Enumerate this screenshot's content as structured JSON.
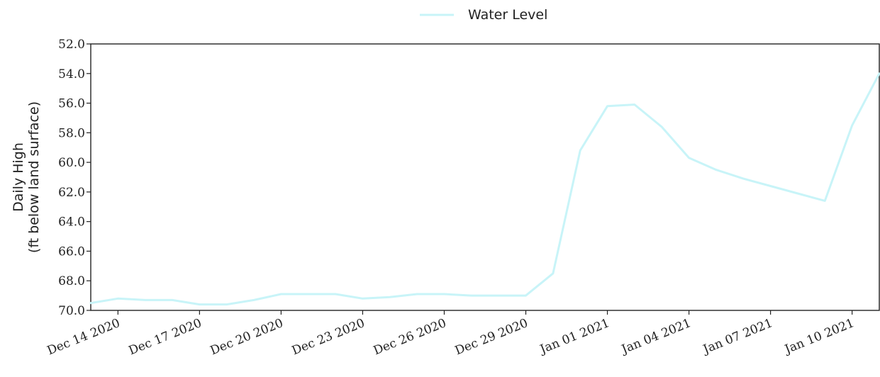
{
  "chart_data": {
    "type": "line",
    "title": "",
    "xlabel": "",
    "ylabel_line1": "Daily High",
    "ylabel_line2": "(ft below land surface)",
    "y_inverted": true,
    "ylim": [
      52.0,
      70.0
    ],
    "y_ticks": [
      "52.0",
      "54.0",
      "56.0",
      "58.0",
      "60.0",
      "62.0",
      "64.0",
      "66.0",
      "68.0",
      "70.0"
    ],
    "x_ticks": [
      "Dec 14 2020",
      "Dec 17 2020",
      "Dec 20 2020",
      "Dec 23 2020",
      "Dec 26 2020",
      "Dec 29 2020",
      "Jan 01 2021",
      "Jan 04 2021",
      "Jan 07 2021",
      "Jan 10 2021"
    ],
    "x_tick_dates": [
      "2020-12-14",
      "2020-12-17",
      "2020-12-20",
      "2020-12-23",
      "2020-12-26",
      "2020-12-29",
      "2021-01-01",
      "2021-01-04",
      "2021-01-07",
      "2021-01-10"
    ],
    "xlim": [
      "2020-12-13",
      "2021-01-11"
    ],
    "grid": false,
    "legend_position": "top-center",
    "series": [
      {
        "name": "Water Level",
        "color": "#c8f4f8",
        "points": [
          {
            "x": "2020-12-13",
            "y": 69.5
          },
          {
            "x": "2020-12-14",
            "y": 69.2
          },
          {
            "x": "2020-12-15",
            "y": 69.3
          },
          {
            "x": "2020-12-16",
            "y": 69.3
          },
          {
            "x": "2020-12-17",
            "y": 69.6
          },
          {
            "x": "2020-12-18",
            "y": 69.6
          },
          {
            "x": "2020-12-19",
            "y": 69.3
          },
          {
            "x": "2020-12-20",
            "y": 68.9
          },
          {
            "x": "2020-12-21",
            "y": 68.9
          },
          {
            "x": "2020-12-22",
            "y": 68.9
          },
          {
            "x": "2020-12-23",
            "y": 69.2
          },
          {
            "x": "2020-12-24",
            "y": 69.1
          },
          {
            "x": "2020-12-25",
            "y": 68.9
          },
          {
            "x": "2020-12-26",
            "y": 68.9
          },
          {
            "x": "2020-12-27",
            "y": 69.0
          },
          {
            "x": "2020-12-28",
            "y": 69.0
          },
          {
            "x": "2020-12-29",
            "y": 69.0
          },
          {
            "x": "2020-12-30",
            "y": 67.5
          },
          {
            "x": "2020-12-31",
            "y": 59.2
          },
          {
            "x": "2021-01-01",
            "y": 56.2
          },
          {
            "x": "2021-01-02",
            "y": 56.1
          },
          {
            "x": "2021-01-03",
            "y": 57.6
          },
          {
            "x": "2021-01-04",
            "y": 59.7
          },
          {
            "x": "2021-01-05",
            "y": 60.5
          },
          {
            "x": "2021-01-06",
            "y": 61.1
          },
          {
            "x": "2021-01-07",
            "y": 61.6
          },
          {
            "x": "2021-01-08",
            "y": 62.1
          },
          {
            "x": "2021-01-09",
            "y": 62.6
          },
          {
            "x": "2021-01-10",
            "y": 57.5
          },
          {
            "x": "2021-01-11",
            "y": 54.0
          }
        ]
      }
    ]
  }
}
